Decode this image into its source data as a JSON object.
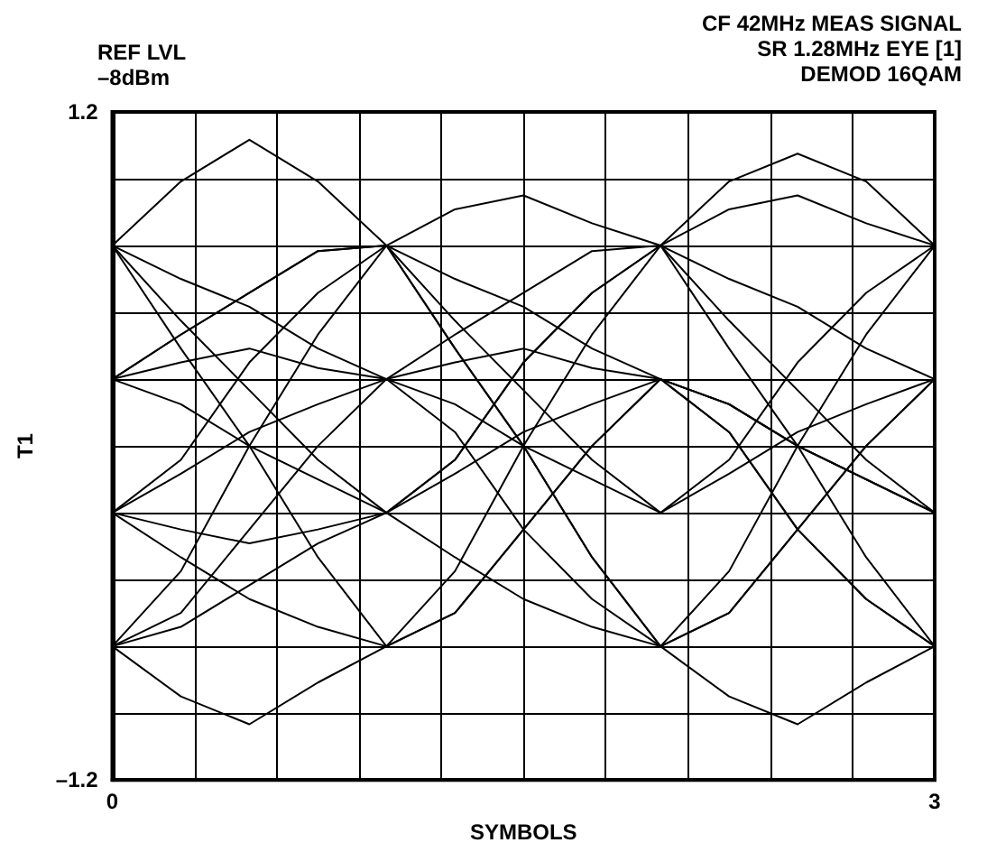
{
  "chart_data": {
    "type": "line",
    "xlabel": "SYMBOLS",
    "ylabel": "T1",
    "annotations": [
      "REF LVL\n–8dBm",
      "CF 42MHz MEAS SIGNAL\nSR 1.28MHz EYE [1]\nDEMOD 16QAM"
    ],
    "x": [
      0,
      0.25,
      0.5,
      0.75,
      1,
      1.25,
      1.5,
      1.75,
      2,
      2.25,
      2.5,
      2.75,
      3
    ],
    "xlim": [
      0,
      3
    ],
    "xticks": [
      0,
      {
        "value": 0.3,
        "label": null
      },
      {
        "value": 0.6,
        "label": null
      },
      {
        "value": 0.9,
        "label": null
      },
      {
        "value": 1.2,
        "label": null
      },
      {
        "value": 1.5,
        "label": null
      },
      {
        "value": 1.8,
        "label": null
      },
      {
        "value": 2.1,
        "label": null
      },
      {
        "value": 2.4,
        "label": null
      },
      {
        "value": 2.7,
        "label": null
      },
      3
    ],
    "ylim": [
      -1.2,
      1.2
    ],
    "yticks": [
      {
        "value": -1.2,
        "label": "–1.2"
      },
      {
        "value": -0.96,
        "label": null
      },
      {
        "value": -0.72,
        "label": null
      },
      {
        "value": -0.48,
        "label": null
      },
      {
        "value": -0.24,
        "label": null
      },
      {
        "value": 0,
        "label": null
      },
      {
        "value": 0.24,
        "label": null
      },
      {
        "value": 0.48,
        "label": null
      },
      {
        "value": 0.72,
        "label": null
      },
      {
        "value": 0.96,
        "label": null
      },
      1.2
    ],
    "grid": true,
    "marker": "none",
    "line_style": "solid",
    "series": [
      {
        "color": "#000000",
        "values": [
          0.72,
          0.95,
          1.1,
          0.95,
          0.72,
          0.6,
          0.5,
          0.35,
          0.24,
          0.05,
          -0.3,
          -0.55,
          -0.72
        ]
      },
      {
        "color": "#000000",
        "values": [
          0.72,
          0.6,
          0.5,
          0.35,
          0.24,
          0.15,
          0,
          -0.12,
          -0.24,
          -0.05,
          0.3,
          0.55,
          0.72
        ]
      },
      {
        "color": "#000000",
        "values": [
          0.72,
          0.45,
          0.2,
          -0.05,
          -0.24,
          -0.4,
          -0.55,
          -0.65,
          -0.72,
          -0.6,
          -0.3,
          0,
          0.24
        ]
      },
      {
        "color": "#000000",
        "values": [
          0.72,
          0.35,
          0,
          -0.4,
          -0.72,
          -0.45,
          0,
          0.4,
          0.72,
          0.45,
          0.2,
          -0.05,
          -0.24
        ]
      },
      {
        "color": "#000000",
        "values": [
          0.24,
          0.4,
          0.55,
          0.7,
          0.72,
          0.85,
          0.9,
          0.8,
          0.72,
          0.95,
          1.05,
          0.95,
          0.72
        ]
      },
      {
        "color": "#000000",
        "values": [
          0.24,
          0.3,
          0.35,
          0.28,
          0.24,
          0.05,
          -0.3,
          -0.55,
          -0.72,
          -0.9,
          -1.0,
          -0.85,
          -0.72
        ]
      },
      {
        "color": "#000000",
        "values": [
          0.24,
          0.15,
          0,
          -0.12,
          -0.24,
          -0.1,
          0.05,
          0.15,
          0.24,
          0.15,
          0,
          -0.12,
          -0.24
        ]
      },
      {
        "color": "#000000",
        "values": [
          -0.24,
          -0.05,
          0.3,
          0.55,
          0.72,
          0.35,
          0,
          -0.4,
          -0.72,
          -0.45,
          0,
          0.4,
          0.72
        ]
      },
      {
        "color": "#000000",
        "values": [
          -0.24,
          -0.1,
          0.05,
          0.15,
          0.24,
          0.4,
          0.55,
          0.7,
          0.72,
          0.6,
          0.5,
          0.35,
          0.24
        ]
      },
      {
        "color": "#000000",
        "values": [
          -0.24,
          -0.3,
          -0.35,
          -0.3,
          -0.24,
          -0.05,
          0.3,
          0.55,
          0.72,
          0.35,
          0,
          -0.4,
          -0.72
        ]
      },
      {
        "color": "#000000",
        "values": [
          -0.24,
          -0.4,
          -0.55,
          -0.65,
          -0.72,
          -0.6,
          -0.3,
          0,
          0.24,
          0.15,
          0,
          -0.12,
          -0.24
        ]
      },
      {
        "color": "#000000",
        "values": [
          -0.72,
          -0.45,
          0,
          0.4,
          0.72,
          0.45,
          0.2,
          -0.05,
          -0.24,
          -0.1,
          0.05,
          0.15,
          0.24
        ]
      },
      {
        "color": "#000000",
        "values": [
          -0.72,
          -0.6,
          -0.3,
          0,
          0.24,
          0.3,
          0.35,
          0.28,
          0.24,
          0.15,
          0,
          -0.12,
          -0.24
        ]
      },
      {
        "color": "#000000",
        "values": [
          -0.72,
          -0.65,
          -0.5,
          -0.35,
          -0.24,
          -0.05,
          0.3,
          0.55,
          0.72,
          0.85,
          0.9,
          0.8,
          0.72
        ]
      },
      {
        "color": "#000000",
        "values": [
          -0.72,
          -0.9,
          -1.0,
          -0.85,
          -0.72,
          -0.6,
          -0.3,
          0,
          0.24,
          0.05,
          -0.3,
          -0.55,
          -0.72
        ]
      },
      {
        "color": "#000000",
        "values": [
          0.24,
          0.4,
          0.55,
          0.7,
          0.72,
          0.35,
          0,
          -0.4,
          -0.72,
          -0.6,
          -0.3,
          0,
          0.24
        ]
      }
    ]
  }
}
